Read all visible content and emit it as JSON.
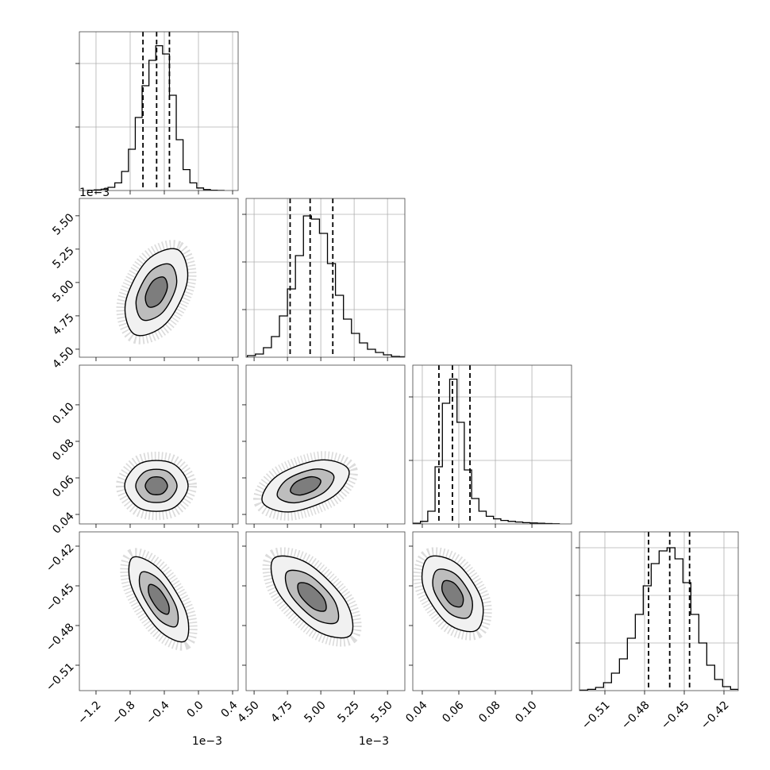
{
  "chart_data": {
    "type": "corner",
    "diagonal_grid": true,
    "parameters": [
      {
        "lim": [
          -1.395,
          0.465
        ],
        "ticks": [
          {
            "value": -1.2,
            "label": "−1.2"
          },
          {
            "value": -0.8,
            "label": "−0.8"
          },
          {
            "value": -0.4,
            "label": "−0.4"
          },
          {
            "value": 0,
            "label": "0.0"
          },
          0.4
        ],
        "offset_label": "1e−3"
      },
      {
        "lim": [
          4.44,
          5.63
        ],
        "ticks": [
          {
            "value": 4.5,
            "label": "4.50"
          },
          4.75,
          {
            "value": 5,
            "label": "5.00"
          },
          5.25,
          {
            "value": 5.5,
            "label": "5.50"
          }
        ],
        "offset_label": "1e−3"
      },
      {
        "lim": [
          0.0348,
          0.1217
        ],
        "ticks": [
          0.04,
          0.06,
          0.08,
          {
            "value": 0.1,
            "label": "0.10"
          }
        ]
      },
      {
        "lim": [
          -0.5292,
          -0.4092
        ],
        "ticks": [
          {
            "value": -0.51,
            "label": "−0.51"
          },
          {
            "value": -0.48,
            "label": "−0.48"
          },
          {
            "value": -0.45,
            "label": "−0.45"
          },
          {
            "value": -0.42,
            "label": "−0.42"
          }
        ]
      }
    ],
    "histograms": [
      {
        "bins": [
          -1.3,
          -1.22,
          -1.14,
          -1.06,
          -0.98,
          -0.9,
          -0.82,
          -0.74,
          -0.66,
          -0.58,
          -0.5,
          -0.42,
          -0.34,
          -0.26,
          -0.18,
          -0.1,
          -0.02,
          0.06,
          0.14,
          0.22,
          0.3
        ],
        "counts": [
          5,
          10,
          20,
          50,
          120,
          300,
          650,
          1150,
          1650,
          2050,
          2280,
          2150,
          1500,
          800,
          330,
          120,
          40,
          15,
          5,
          2
        ],
        "ylim": [
          0,
          2500
        ],
        "yticks": [
          1000,
          2000
        ],
        "quantiles": [
          -0.65,
          -0.49,
          -0.34
        ]
      },
      {
        "bins": [
          4.45,
          4.51,
          4.57,
          4.63,
          4.69,
          4.75,
          4.81,
          4.87,
          4.93,
          4.99,
          5.05,
          5.11,
          5.17,
          5.23,
          5.29,
          5.35,
          5.41,
          5.47,
          5.53,
          5.59,
          5.65
        ],
        "counts": [
          10,
          20,
          60,
          130,
          260,
          430,
          640,
          890,
          870,
          780,
          590,
          390,
          240,
          150,
          90,
          50,
          30,
          15,
          5,
          3
        ],
        "ylim": [
          0,
          1000
        ],
        "yticks": [
          300,
          600,
          900
        ],
        "quantiles": [
          4.77,
          4.92,
          5.09
        ]
      },
      {
        "bins": [
          0.035,
          0.039,
          0.043,
          0.047,
          0.051,
          0.055,
          0.059,
          0.063,
          0.067,
          0.071,
          0.075,
          0.079,
          0.083,
          0.087,
          0.091,
          0.095,
          0.099,
          0.103,
          0.107,
          0.111,
          0.115
        ],
        "counts": [
          10,
          40,
          200,
          900,
          1900,
          2280,
          1600,
          850,
          400,
          200,
          120,
          80,
          55,
          40,
          30,
          20,
          15,
          10,
          6,
          3
        ],
        "ylim": [
          0,
          2500
        ],
        "yticks": [
          1000,
          2000
        ],
        "quantiles": [
          0.0491,
          0.0565,
          0.0661
        ]
      },
      {
        "bins": [
          -0.529,
          -0.523,
          -0.517,
          -0.511,
          -0.505,
          -0.499,
          -0.493,
          -0.487,
          -0.481,
          -0.475,
          -0.469,
          -0.463,
          -0.457,
          -0.451,
          -0.445,
          -0.439,
          -0.433,
          -0.427,
          -0.421,
          -0.415,
          -0.409
        ],
        "counts": [
          3,
          8,
          20,
          50,
          110,
          200,
          330,
          480,
          660,
          800,
          880,
          900,
          830,
          680,
          480,
          300,
          160,
          70,
          25,
          8
        ],
        "ylim": [
          0,
          1000
        ],
        "yticks": [
          300,
          600,
          900
        ],
        "quantiles": [
          -0.477,
          -0.461,
          -0.446
        ]
      }
    ],
    "panels": [
      {
        "contours": [
          {
            "x": [
              -0.242,
              -0.131,
              -0.382,
              -0.744,
              -0.855,
              -0.604
            ],
            "y": [
              5.246,
              5.01,
              4.692,
              4.61,
              4.846,
              5.164
            ]
          },
          {
            "x": [
              -0.33,
              -0.258,
              -0.421,
              -0.656,
              -0.728,
              -0.565
            ],
            "y": [
              5.135,
              4.981,
              4.775,
              4.721,
              4.875,
              5.081
            ]
          },
          {
            "x": [
              -0.405,
              -0.366,
              -0.454,
              -0.581,
              -0.62,
              -0.532
            ],
            "y": [
              5.039,
              4.957,
              4.845,
              4.817,
              4.899,
              5.011
            ]
          }
        ]
      },
      {
        "contours": [
          {
            "x": [
              -0.121,
              -0.307,
              -0.679,
              -0.865,
              -0.679,
              -0.307
            ],
            "y": [
              0.0556,
              0.0432,
              0.0432,
              0.0556,
              0.068,
              0.068
            ]
          },
          {
            "x": [
              -0.251,
              -0.372,
              -0.614,
              -0.735,
              -0.614,
              -0.372
            ],
            "y": [
              0.0556,
              0.0475,
              0.0475,
              0.0556,
              0.0637,
              0.0637
            ]
          },
          {
            "x": [
              -0.363,
              -0.428,
              -0.558,
              -0.623,
              -0.558,
              -0.428
            ],
            "y": [
              0.0556,
              0.0513,
              0.0513,
              0.0556,
              0.06,
              0.06
            ]
          }
        ]
      },
      {
        "contours": [
          {
            "x": [
              5.21,
              5.097,
              4.772,
              4.562,
              4.675,
              5.0
            ],
            "y": [
              0.0642,
              0.05,
              0.0414,
              0.047,
              0.0612,
              0.0698
            ]
          },
          {
            "x": [
              5.097,
              5.023,
              4.812,
              4.675,
              4.749,
              4.96
            ],
            "y": [
              0.0612,
              0.052,
              0.0464,
              0.05,
              0.0592,
              0.0648
            ]
          },
          {
            "x": [
              4.999,
              4.96,
              4.846,
              4.773,
              4.812,
              4.926
            ],
            "y": [
              0.0586,
              0.0537,
              0.0506,
              0.0526,
              0.0576,
              0.0606
            ]
          }
        ]
      },
      {
        "contours": [
          {
            "x": [
              -0.159,
              -0.477,
              -0.782,
              -0.771,
              -0.453,
              -0.148
            ],
            "y": [
              -0.4918,
              -0.4826,
              -0.451,
              -0.4286,
              -0.4378,
              -0.4694
            ]
          },
          {
            "x": [
              -0.266,
              -0.473,
              -0.671,
              -0.664,
              -0.457,
              -0.259
            ],
            "y": [
              -0.4807,
              -0.4748,
              -0.4542,
              -0.4397,
              -0.4456,
              -0.4662
            ]
          },
          {
            "x": [
              -0.358,
              -0.469,
              -0.576,
              -0.572,
              -0.461,
              -0.354
            ],
            "y": [
              -0.4713,
              -0.468,
              -0.457,
              -0.4491,
              -0.4524,
              -0.4634
            ]
          }
        ]
      },
      {
        "contours": [
          {
            "x": [
              5.221,
              4.968,
              4.681,
              4.647,
              4.9,
              5.187
            ],
            "y": [
              -0.4874,
              -0.4839,
              -0.455,
              -0.4294,
              -0.4329,
              -0.4618
            ]
          },
          {
            "x": [
              5.121,
              4.956,
              4.77,
              4.747,
              4.912,
              5.098
            ],
            "y": [
              -0.4773,
              -0.475,
              -0.4562,
              -0.4395,
              -0.4418,
              -0.4606
            ]
          },
          {
            "x": [
              5.034,
              4.946,
              4.845,
              4.834,
              4.922,
              5.023
            ],
            "y": [
              -0.4686,
              -0.4673,
              -0.4572,
              -0.4482,
              -0.4495,
              -0.4596
            ]
          }
        ]
      },
      {
        "contours": [
          {
            "x": [
              0.0698,
              0.0538,
              0.0406,
              0.0434,
              0.0594,
              0.0726
            ],
            "y": [
              -0.4834,
              -0.4783,
              -0.4509,
              -0.4286,
              -0.4337,
              -0.4611
            ]
          },
          {
            "x": [
              0.0652,
              0.0548,
              0.0462,
              0.048,
              0.0584,
              0.067
            ],
            "y": [
              -0.4738,
              -0.4705,
              -0.4527,
              -0.4382,
              -0.4415,
              -0.4593
            ]
          },
          {
            "x": [
              0.0612,
              0.0556,
              0.051,
              0.052,
              0.0576,
              0.0622
            ],
            "y": [
              -0.4656,
              -0.4638,
              -0.4542,
              -0.4464,
              -0.4482,
              -0.4578
            ]
          }
        ]
      }
    ]
  }
}
